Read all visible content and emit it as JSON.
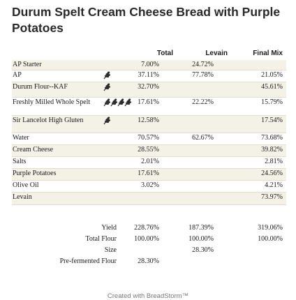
{
  "title": "Durum Spelt Cream Cheese Bread with Purple Potatoes",
  "headers": {
    "total": "Total",
    "levain": "Levain",
    "final_mix": "Final Mix"
  },
  "ingredients": [
    {
      "label": "AP Starter",
      "total": "7.00%",
      "levain": "24.72%",
      "final_mix": "",
      "icons": 0
    },
    {
      "label": "AP",
      "total": "37.11%",
      "levain": "77.78%",
      "final_mix": "21.05%",
      "icons": 1
    },
    {
      "label": "Durum Flour--KAF",
      "total": "32.70%",
      "levain": "",
      "final_mix": "45.61%",
      "icons": 1
    },
    {
      "label": "Freshly Milled Whole Spelt",
      "total": "17.61%",
      "levain": "22.22%",
      "final_mix": "15.79%",
      "icons": 4
    },
    {
      "label": "Sir Lancelot High Gluten",
      "total": "12.58%",
      "levain": "",
      "final_mix": "17.54%",
      "icons": 1
    },
    {
      "label": "Water",
      "total": "70.57%",
      "levain": "62.67%",
      "final_mix": "73.68%",
      "icons": 0
    },
    {
      "label": "Cream Cheese",
      "total": "28.55%",
      "levain": "",
      "final_mix": "39.82%",
      "icons": 0
    },
    {
      "label": "Salts",
      "total": "2.01%",
      "levain": "",
      "final_mix": "2.81%",
      "icons": 0
    },
    {
      "label": "Purple Potatoes",
      "total": "17.61%",
      "levain": "",
      "final_mix": "24.56%",
      "icons": 0
    },
    {
      "label": "Olive Oil",
      "total": "3.02%",
      "levain": "",
      "final_mix": "4.21%",
      "icons": 0
    },
    {
      "label": "Levain",
      "total": "",
      "levain": "",
      "final_mix": "73.97%",
      "icons": 0
    }
  ],
  "summary": [
    {
      "label": "Yield",
      "total": "228.76%",
      "levain": "187.39%",
      "final_mix": "319.06%"
    },
    {
      "label": "Total Flour",
      "total": "100.00%",
      "levain": "100.00%",
      "final_mix": "100.00%"
    },
    {
      "label": "Size",
      "total": "",
      "levain": "28.30%",
      "final_mix": ""
    },
    {
      "label": "Pre-fermented Flour",
      "total": "28.30%",
      "levain": "",
      "final_mix": ""
    }
  ],
  "footer": "Created with BreadStorm™",
  "icon_name": "wheat-icon",
  "colors": {
    "row_shade": "#f4f1e6",
    "icon": "#2a2a2a"
  }
}
